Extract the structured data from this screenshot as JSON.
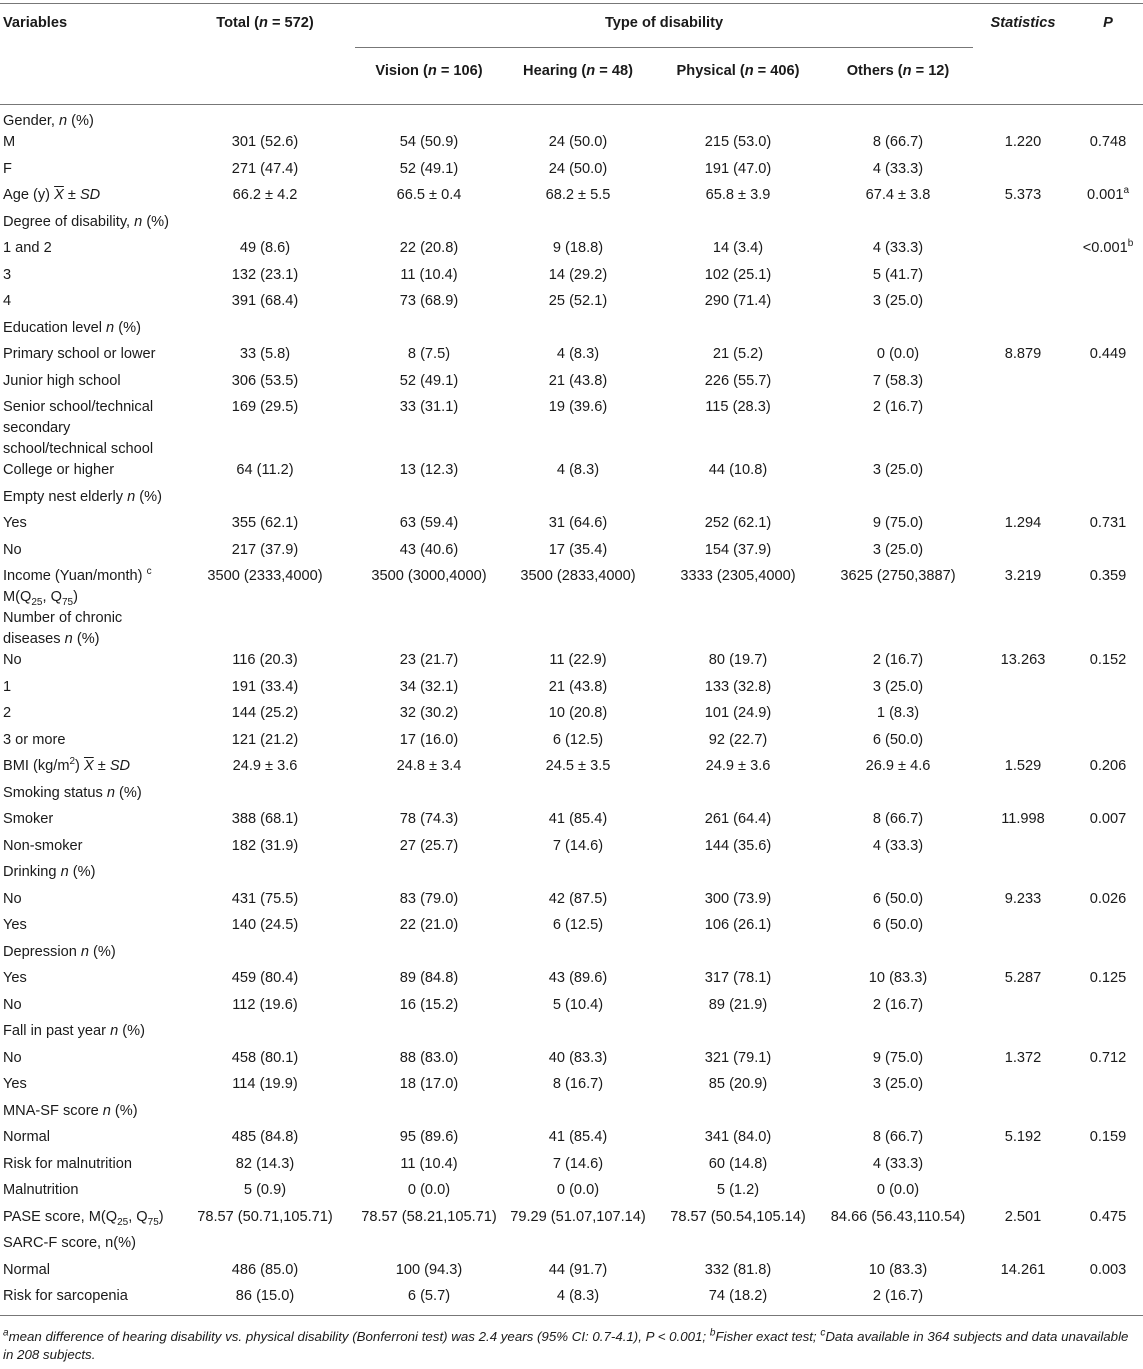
{
  "header": {
    "variables": "Variables",
    "total_pre": "Total (",
    "total_n": "n",
    "total_post": " = 572)",
    "type_of_disability": "Type of disability",
    "statistics": "Statistics",
    "p": "P",
    "vision_pre": "Vision (",
    "vision_post": " = 106)",
    "hearing_pre": "Hearing (",
    "hearing_post": " = 48)",
    "physical_pre": "Physical (",
    "physical_post": " = 406)",
    "others_pre": "Others (",
    "others_post": " = 12)"
  },
  "rows": [
    {
      "label": "Gender, n (%)",
      "section": true
    },
    {
      "label": "M",
      "total": "301 (52.6)",
      "vision": "54 (50.9)",
      "hearing": "24 (50.0)",
      "physical": "215 (53.0)",
      "others": "8 (66.7)",
      "stat": "1.220",
      "p": "0.748"
    },
    {
      "label": "F",
      "total": "271 (47.4)",
      "vision": "52 (49.1)",
      "hearing": "24 (50.0)",
      "physical": "191 (47.0)",
      "others": "4 (33.3)",
      "stat": "",
      "p": ""
    },
    {
      "label": "Age (y) X̄ ± SD",
      "total": "66.2 ± 4.2",
      "vision": "66.5 ± 0.4",
      "hearing": "68.2 ± 5.5",
      "physical": "65.8 ± 3.9",
      "others": "67.4 ± 3.8",
      "stat": "5.373",
      "p": "0.001",
      "p_sup": "a"
    },
    {
      "label": "Degree of disability, n (%)",
      "section": true
    },
    {
      "label": "1 and 2",
      "total": "49 (8.6)",
      "vision": "22 (20.8)",
      "hearing": "9 (18.8)",
      "physical": "14 (3.4)",
      "others": "4 (33.3)",
      "stat": "",
      "p": "<0.001",
      "p_sup": "b"
    },
    {
      "label": "3",
      "total": "132 (23.1)",
      "vision": "11 (10.4)",
      "hearing": "14 (29.2)",
      "physical": "102 (25.1)",
      "others": "5 (41.7)",
      "stat": "",
      "p": ""
    },
    {
      "label": "4",
      "total": "391 (68.4)",
      "vision": "73 (68.9)",
      "hearing": "25 (52.1)",
      "physical": "290 (71.4)",
      "others": "3 (25.0)",
      "stat": "",
      "p": ""
    },
    {
      "label": "Education level n (%)",
      "section": true
    },
    {
      "label": "Primary school or lower",
      "total": "33 (5.8)",
      "vision": "8 (7.5)",
      "hearing": "4 (8.3)",
      "physical": "21 (5.2)",
      "others": "0 (0.0)",
      "stat": "8.879",
      "p": "0.449"
    },
    {
      "label": "Junior high school",
      "total": "306 (53.5)",
      "vision": "52 (49.1)",
      "hearing": "21 (43.8)",
      "physical": "226 (55.7)",
      "others": "7 (58.3)",
      "stat": "",
      "p": ""
    },
    {
      "label": "Senior school/technical secondary school/technical school",
      "total": "169 (29.5)",
      "vision": "33 (31.1)",
      "hearing": "19 (39.6)",
      "physical": "115 (28.3)",
      "others": "2 (16.7)",
      "stat": "",
      "p": ""
    },
    {
      "label": "College or higher",
      "total": "64 (11.2)",
      "vision": "13 (12.3)",
      "hearing": "4 (8.3)",
      "physical": "44 (10.8)",
      "others": "3 (25.0)",
      "stat": "",
      "p": ""
    },
    {
      "label": "Empty nest elderly n (%)",
      "section": true
    },
    {
      "label": "Yes",
      "total": "355 (62.1)",
      "vision": "63 (59.4)",
      "hearing": "31 (64.6)",
      "physical": "252 (62.1)",
      "others": "9 (75.0)",
      "stat": "1.294",
      "p": "0.731"
    },
    {
      "label": "No",
      "total": "217 (37.9)",
      "vision": "43 (40.6)",
      "hearing": "17 (35.4)",
      "physical": "154 (37.9)",
      "others": "3 (25.0)",
      "stat": "",
      "p": ""
    },
    {
      "label": "Income (Yuan/month) c M(Q25, Q75)",
      "total": "3500 (2333,4000)",
      "vision": "3500 (3000,4000)",
      "hearing": "3500 (2833,4000)",
      "physical": "3333 (2305,4000)",
      "others": "3625 (2750,3887)",
      "stat": "3.219",
      "p": "0.359"
    },
    {
      "label": "Number of chronic diseases n (%)",
      "section": true
    },
    {
      "label": "No",
      "total": "116 (20.3)",
      "vision": "23 (21.7)",
      "hearing": "11 (22.9)",
      "physical": "80 (19.7)",
      "others": "2 (16.7)",
      "stat": "13.263",
      "p": "0.152"
    },
    {
      "label": "1",
      "total": "191 (33.4)",
      "vision": "34 (32.1)",
      "hearing": "21 (43.8)",
      "physical": "133 (32.8)",
      "others": "3 (25.0)",
      "stat": "",
      "p": ""
    },
    {
      "label": "2",
      "total": "144 (25.2)",
      "vision": "32 (30.2)",
      "hearing": "10 (20.8)",
      "physical": "101 (24.9)",
      "others": "1 (8.3)",
      "stat": "",
      "p": ""
    },
    {
      "label": "3 or more",
      "total": "121 (21.2)",
      "vision": "17 (16.0)",
      "hearing": "6 (12.5)",
      "physical": "92 (22.7)",
      "others": "6 (50.0)",
      "stat": "",
      "p": ""
    },
    {
      "label": "BMI (kg/m2) X̄ ± SD",
      "total": "24.9 ± 3.6",
      "vision": "24.8 ± 3.4",
      "hearing": "24.5 ± 3.5",
      "physical": "24.9 ± 3.6",
      "others": "26.9 ± 4.6",
      "stat": "1.529",
      "p": "0.206"
    },
    {
      "label": "Smoking status n (%)",
      "section": true
    },
    {
      "label": "Smoker",
      "total": "388 (68.1)",
      "vision": "78 (74.3)",
      "hearing": "41 (85.4)",
      "physical": "261 (64.4)",
      "others": "8 (66.7)",
      "stat": "11.998",
      "p": "0.007"
    },
    {
      "label": "Non-smoker",
      "total": "182 (31.9)",
      "vision": "27 (25.7)",
      "hearing": "7 (14.6)",
      "physical": "144 (35.6)",
      "others": "4 (33.3)",
      "stat": "",
      "p": ""
    },
    {
      "label": "Drinking n (%)",
      "section": true
    },
    {
      "label": "No",
      "total": "431 (75.5)",
      "vision": "83 (79.0)",
      "hearing": "42 (87.5)",
      "physical": "300 (73.9)",
      "others": "6 (50.0)",
      "stat": "9.233",
      "p": "0.026"
    },
    {
      "label": "Yes",
      "total": "140 (24.5)",
      "vision": "22 (21.0)",
      "hearing": "6 (12.5)",
      "physical": "106 (26.1)",
      "others": "6 (50.0)",
      "stat": "",
      "p": ""
    },
    {
      "label": "Depression n (%)",
      "section": true
    },
    {
      "label": "Yes",
      "total": "459 (80.4)",
      "vision": "89 (84.8)",
      "hearing": "43 (89.6)",
      "physical": "317 (78.1)",
      "others": "10 (83.3)",
      "stat": "5.287",
      "p": "0.125"
    },
    {
      "label": "No",
      "total": "112 (19.6)",
      "vision": "16 (15.2)",
      "hearing": "5 (10.4)",
      "physical": "89 (21.9)",
      "others": "2 (16.7)",
      "stat": "",
      "p": ""
    },
    {
      "label": "Fall in past year n (%)",
      "section": true
    },
    {
      "label": "No",
      "total": "458 (80.1)",
      "vision": "88 (83.0)",
      "hearing": "40 (83.3)",
      "physical": "321 (79.1)",
      "others": "9 (75.0)",
      "stat": "1.372",
      "p": "0.712"
    },
    {
      "label": "Yes",
      "total": "114 (19.9)",
      "vision": "18 (17.0)",
      "hearing": "8 (16.7)",
      "physical": "85 (20.9)",
      "others": "3 (25.0)",
      "stat": "",
      "p": ""
    },
    {
      "label": "MNA-SF score n (%)",
      "section": true
    },
    {
      "label": "Normal",
      "total": "485 (84.8)",
      "vision": "95 (89.6)",
      "hearing": "41 (85.4)",
      "physical": "341 (84.0)",
      "others": "8 (66.7)",
      "stat": "5.192",
      "p": "0.159"
    },
    {
      "label": "Risk for malnutrition",
      "total": "82 (14.3)",
      "vision": "11 (10.4)",
      "hearing": "7 (14.6)",
      "physical": "60 (14.8)",
      "others": "4 (33.3)",
      "stat": "",
      "p": ""
    },
    {
      "label": "Malnutrition",
      "total": "5 (0.9)",
      "vision": "0 (0.0)",
      "hearing": "0 (0.0)",
      "physical": "5 (1.2)",
      "others": "0 (0.0)",
      "stat": "",
      "p": ""
    },
    {
      "label": "PASE score, M(Q25, Q75)",
      "total": "78.57 (50.71,105.71)",
      "vision": "78.57 (58.21,105.71)",
      "hearing": "79.29 (51.07,107.14)",
      "physical": "78.57 (50.54,105.14)",
      "others": "84.66 (56.43,110.54)",
      "stat": "2.501",
      "p": "0.475"
    },
    {
      "label": "SARC-F score, n(%)",
      "section": true
    },
    {
      "label": "Normal",
      "total": "486 (85.0)",
      "vision": "100 (94.3)",
      "hearing": "44 (91.7)",
      "physical": "332 (81.8)",
      "others": "10 (83.3)",
      "stat": "14.261",
      "p": "0.003"
    },
    {
      "label": "Risk for sarcopenia",
      "total": "86 (15.0)",
      "vision": "6 (5.7)",
      "hearing": "4 (8.3)",
      "physical": "74 (18.2)",
      "others": "2 (16.7)",
      "stat": "",
      "p": ""
    }
  ],
  "footnote": {
    "a": "mean difference of hearing disability vs. physical disability (Bonferroni test) was 2.4 years (95% CI: 0.7-4.1), P < 0.001; ",
    "b": "Fisher exact test; ",
    "c": "Data available in 364 subjects and data unavailable in 208 subjects."
  }
}
